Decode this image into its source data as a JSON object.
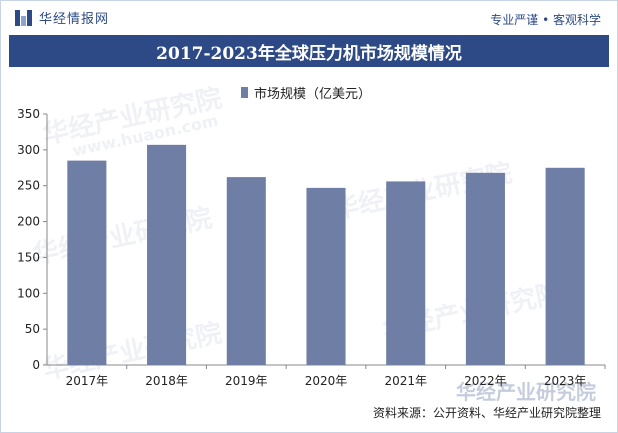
{
  "header": {
    "brand": "华经情报网",
    "tagline": "专业严谨 • 客观科学"
  },
  "footer": {
    "source": "资料来源：公开资料、华经产业研究院整理"
  },
  "watermarks": [
    "华经产业研究院",
    "www.huaon.com"
  ],
  "colors": {
    "accent": "#2d4a86",
    "bar": "#6e7ea4"
  },
  "chart_data": {
    "type": "bar",
    "title": "2017-2023年全球压力机市场规模情况",
    "categories": [
      "2017年",
      "2018年",
      "2019年",
      "2020年",
      "2021年",
      "2022年",
      "2023年"
    ],
    "series": [
      {
        "name": "市场规模（亿美元）",
        "values": [
          285,
          307,
          262,
          247,
          256,
          268,
          275
        ]
      }
    ],
    "ylim": [
      0,
      350
    ],
    "yticks": [
      0,
      50,
      100,
      150,
      200,
      250,
      300,
      350
    ],
    "grid": false,
    "legend_position": "top-center",
    "xlabel": "",
    "ylabel": ""
  }
}
